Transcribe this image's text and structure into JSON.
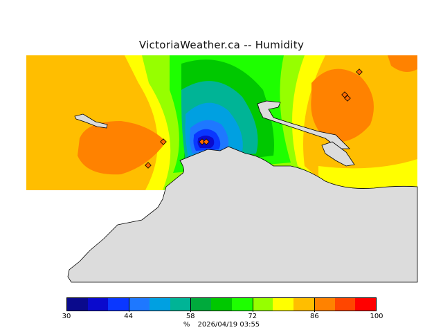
{
  "title": "VictoriaWeather.ca  --  Humidity",
  "legend": {
    "colors": [
      "#0a0a8c",
      "#0a0acd",
      "#0a37ff",
      "#1e78ff",
      "#00a0e1",
      "#00b496",
      "#00aa3c",
      "#00c800",
      "#1eff00",
      "#96ff00",
      "#ffff00",
      "#ffbe00",
      "#ff8200",
      "#ff4600",
      "#ff0000"
    ],
    "tick_labels": [
      "30",
      "44",
      "58",
      "72",
      "86",
      "100"
    ],
    "tick_values": [
      30,
      44,
      58,
      72,
      86,
      100
    ],
    "min": 30,
    "max": 100,
    "unit": "%",
    "timestamp": "2026/04/19 03:55"
  },
  "map": {
    "land_color": "#dcdcdc",
    "station_marker_color": "#ff6a00"
  }
}
